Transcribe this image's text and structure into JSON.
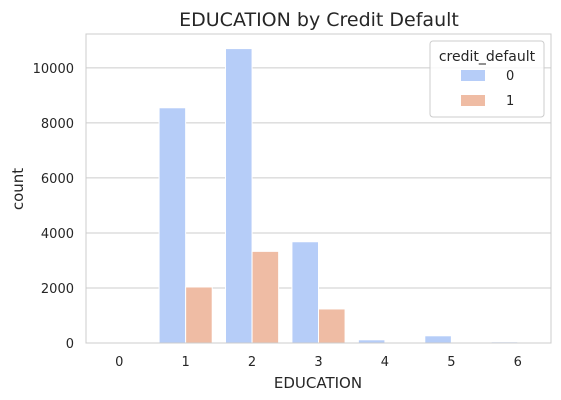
{
  "chart_data": {
    "type": "bar",
    "title": "EDUCATION by Credit Default",
    "xlabel": "EDUCATION",
    "ylabel": "count",
    "categories": [
      "0",
      "1",
      "2",
      "3",
      "4",
      "5",
      "6"
    ],
    "ylim": [
      0,
      11230
    ],
    "yticks": [
      0,
      2000,
      4000,
      6000,
      8000,
      10000
    ],
    "grid": true,
    "legend": {
      "title": "credit_default",
      "placement": "top-right"
    },
    "series": [
      {
        "name": "0",
        "color": "#b6cdf8",
        "values": [
          14,
          8549,
          10700,
          3680,
          116,
          262,
          43
        ]
      },
      {
        "name": "1",
        "color": "#efbca4",
        "values": [
          0,
          2036,
          3330,
          1237,
          7,
          18,
          8
        ]
      }
    ]
  }
}
